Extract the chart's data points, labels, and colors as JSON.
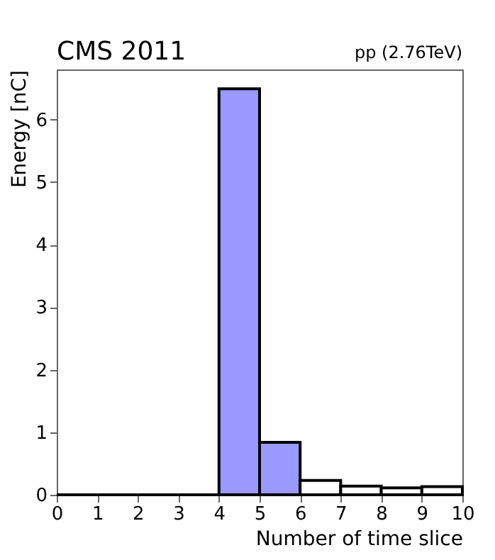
{
  "chart_data": {
    "type": "histogram",
    "title": "CMS 2011",
    "subtitle": "pp (2.76TeV)",
    "xlabel": "Number of time slice",
    "ylabel": "Energy [nC]",
    "bins": [
      0,
      1,
      2,
      3,
      4,
      5,
      6,
      7,
      8,
      9,
      10
    ],
    "values": [
      0,
      0,
      0,
      0,
      6.49,
      0.84,
      0.23,
      0.14,
      0.11,
      0.13
    ],
    "colors": [
      "#ffffff",
      "#ffffff",
      "#ffffff",
      "#ffffff",
      "#9999ff",
      "#9999ff",
      "#ffffff",
      "#ffffff",
      "#ffffff",
      "#ffffff"
    ],
    "xlim": [
      0,
      10
    ],
    "xticks": [
      0,
      1,
      2,
      3,
      4,
      5,
      6,
      7,
      8,
      9,
      10
    ],
    "ylim": [
      0,
      6.8
    ],
    "yticks": [
      0,
      1,
      2,
      3,
      4,
      5,
      6
    ],
    "grid": false,
    "legend": false
  }
}
